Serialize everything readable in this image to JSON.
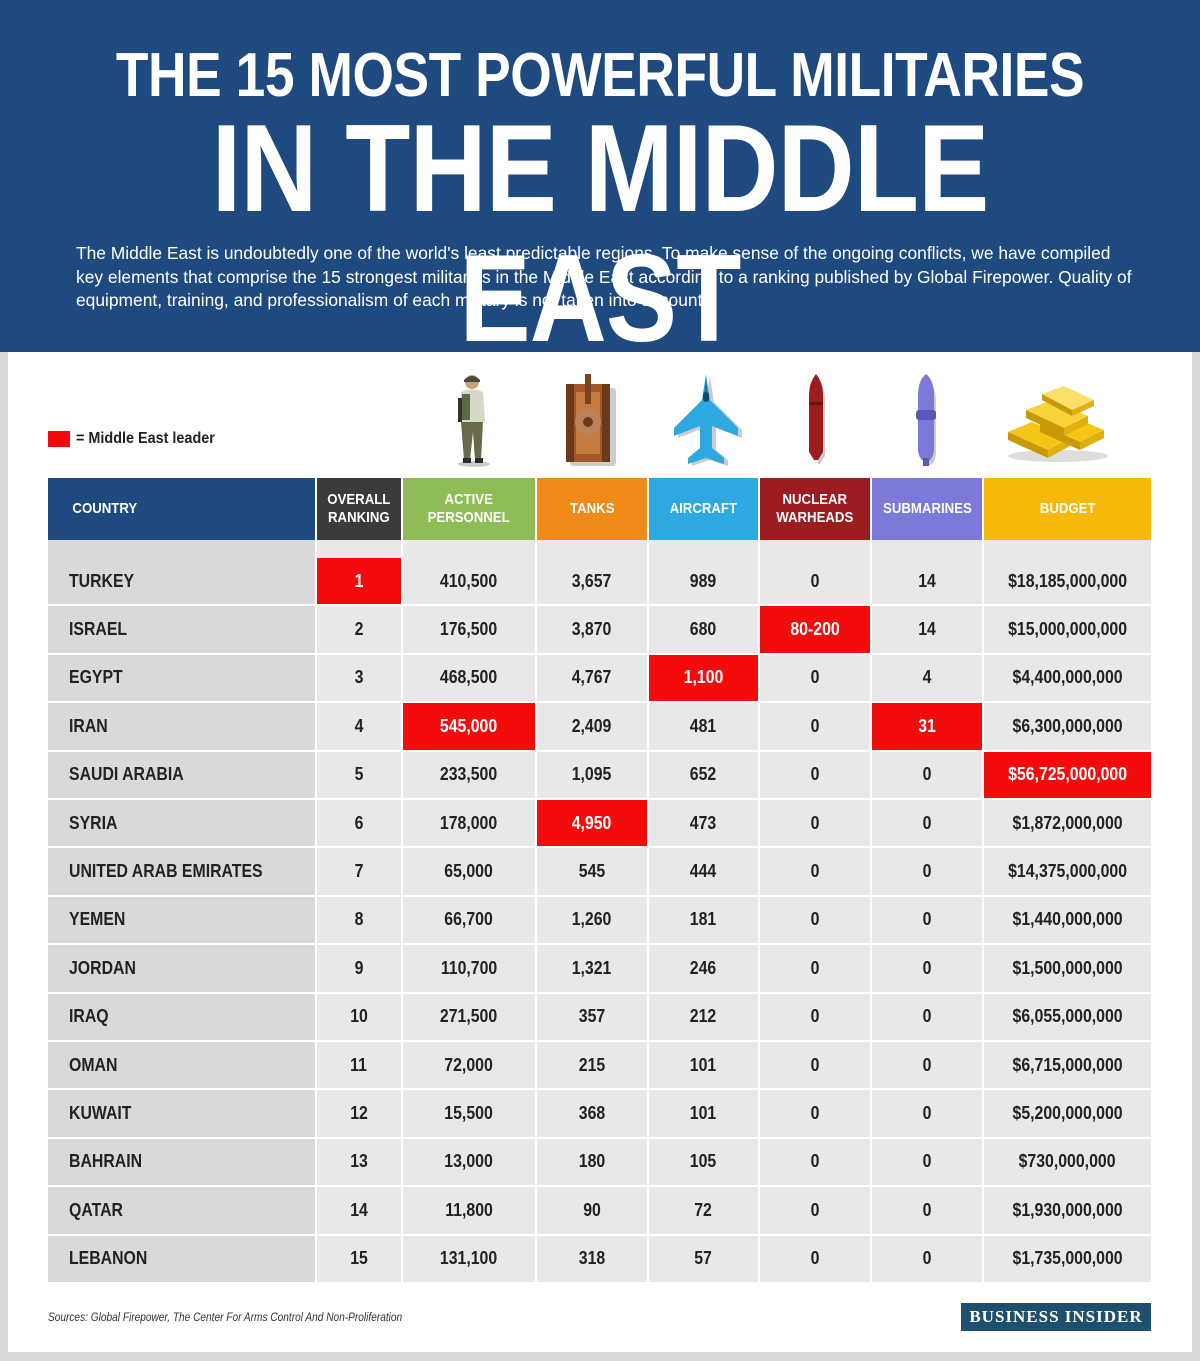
{
  "header": {
    "title_line1": "THE 15 MOST POWERFUL MILITARIES",
    "title_line2": "IN THE MIDDLE EAST",
    "intro": "The Middle East is undoubtedly one of the world's least predictable regions. To make sense of the ongoing conflicts, we have compiled key elements that comprise the 15 strongest militaries in the Middle East according to a ranking published by Global Firepower. Quality of equipment, training, and professionalism of each military is not taken into account."
  },
  "legend": {
    "label": "= Middle East leader",
    "color": "#f40c0c"
  },
  "icons": [
    "soldier-icon",
    "tank-icon",
    "fighter-jet-icon",
    "nuclear-warhead-icon",
    "submarine-icon",
    "gold-bars-icon"
  ],
  "colors": {
    "country": "#1e4a80",
    "ranking": "#3b3b3b",
    "personnel": "#8fbc57",
    "tanks": "#ef8a18",
    "aircraft": "#2ea8e0",
    "warheads": "#9b1d20",
    "submarines": "#7c79d9",
    "budget": "#f6b809",
    "leader": "#f40c0c"
  },
  "chart_data": {
    "type": "table",
    "title": "THE 15 MOST POWERFUL MILITARIES IN THE MIDDLE EAST",
    "columns": [
      "COUNTRY",
      "OVERALL RANKING",
      "ACTIVE PERSONNEL",
      "TANKS",
      "AIRCRAFT",
      "NUCLEAR WARHEADS",
      "SUBMARINES",
      "BUDGET"
    ],
    "column_labels": [
      {
        "line1": "COUNTRY",
        "line2": ""
      },
      {
        "line1": "OVERALL",
        "line2": "RANKING"
      },
      {
        "line1": "ACTIVE",
        "line2": "PERSONNEL"
      },
      {
        "line1": "TANKS",
        "line2": ""
      },
      {
        "line1": "AIRCRAFT",
        "line2": ""
      },
      {
        "line1": "NUCLEAR",
        "line2": "WARHEADS"
      },
      {
        "line1": "SUBMARINES",
        "line2": ""
      },
      {
        "line1": "BUDGET",
        "line2": ""
      }
    ],
    "rows": [
      [
        "TURKEY",
        "1",
        "410,500",
        "3,657",
        "989",
        "0",
        "14",
        "$18,185,000,000"
      ],
      [
        "ISRAEL",
        "2",
        "176,500",
        "3,870",
        "680",
        "80-200",
        "14",
        "$15,000,000,000"
      ],
      [
        "EGYPT",
        "3",
        "468,500",
        "4,767",
        "1,100",
        "0",
        "4",
        "$4,400,000,000"
      ],
      [
        "IRAN",
        "4",
        "545,000",
        "2,409",
        "481",
        "0",
        "31",
        "$6,300,000,000"
      ],
      [
        "SAUDI ARABIA",
        "5",
        "233,500",
        "1,095",
        "652",
        "0",
        "0",
        "$56,725,000,000"
      ],
      [
        "SYRIA",
        "6",
        "178,000",
        "4,950",
        "473",
        "0",
        "0",
        "$1,872,000,000"
      ],
      [
        "UNITED ARAB EMIRATES",
        "7",
        "65,000",
        "545",
        "444",
        "0",
        "0",
        "$14,375,000,000"
      ],
      [
        "YEMEN",
        "8",
        "66,700",
        "1,260",
        "181",
        "0",
        "0",
        "$1,440,000,000"
      ],
      [
        "JORDAN",
        "9",
        "110,700",
        "1,321",
        "246",
        "0",
        "0",
        "$1,500,000,000"
      ],
      [
        "IRAQ",
        "10",
        "271,500",
        "357",
        "212",
        "0",
        "0",
        "$6,055,000,000"
      ],
      [
        "OMAN",
        "11",
        "72,000",
        "215",
        "101",
        "0",
        "0",
        "$6,715,000,000"
      ],
      [
        "KUWAIT",
        "12",
        "15,500",
        "368",
        "101",
        "0",
        "0",
        "$5,200,000,000"
      ],
      [
        "BAHRAIN",
        "13",
        "13,000",
        "180",
        "105",
        "0",
        "0",
        "$730,000,000"
      ],
      [
        "QATAR",
        "14",
        "11,800",
        "90",
        "72",
        "0",
        "0",
        "$1,930,000,000"
      ],
      [
        "LEBANON",
        "15",
        "131,100",
        "318",
        "57",
        "0",
        "0",
        "$1,735,000,000"
      ]
    ],
    "leaders": [
      {
        "row": 0,
        "col": 1
      },
      {
        "row": 1,
        "col": 5
      },
      {
        "row": 2,
        "col": 4
      },
      {
        "row": 3,
        "col": 2
      },
      {
        "row": 3,
        "col": 6
      },
      {
        "row": 4,
        "col": 7
      },
      {
        "row": 5,
        "col": 3
      }
    ]
  },
  "footer": {
    "sources": "Sources: Global Firepower, The Center For Arms Control And Non-Proliferation",
    "brand": "BUSINESS INSIDER"
  }
}
